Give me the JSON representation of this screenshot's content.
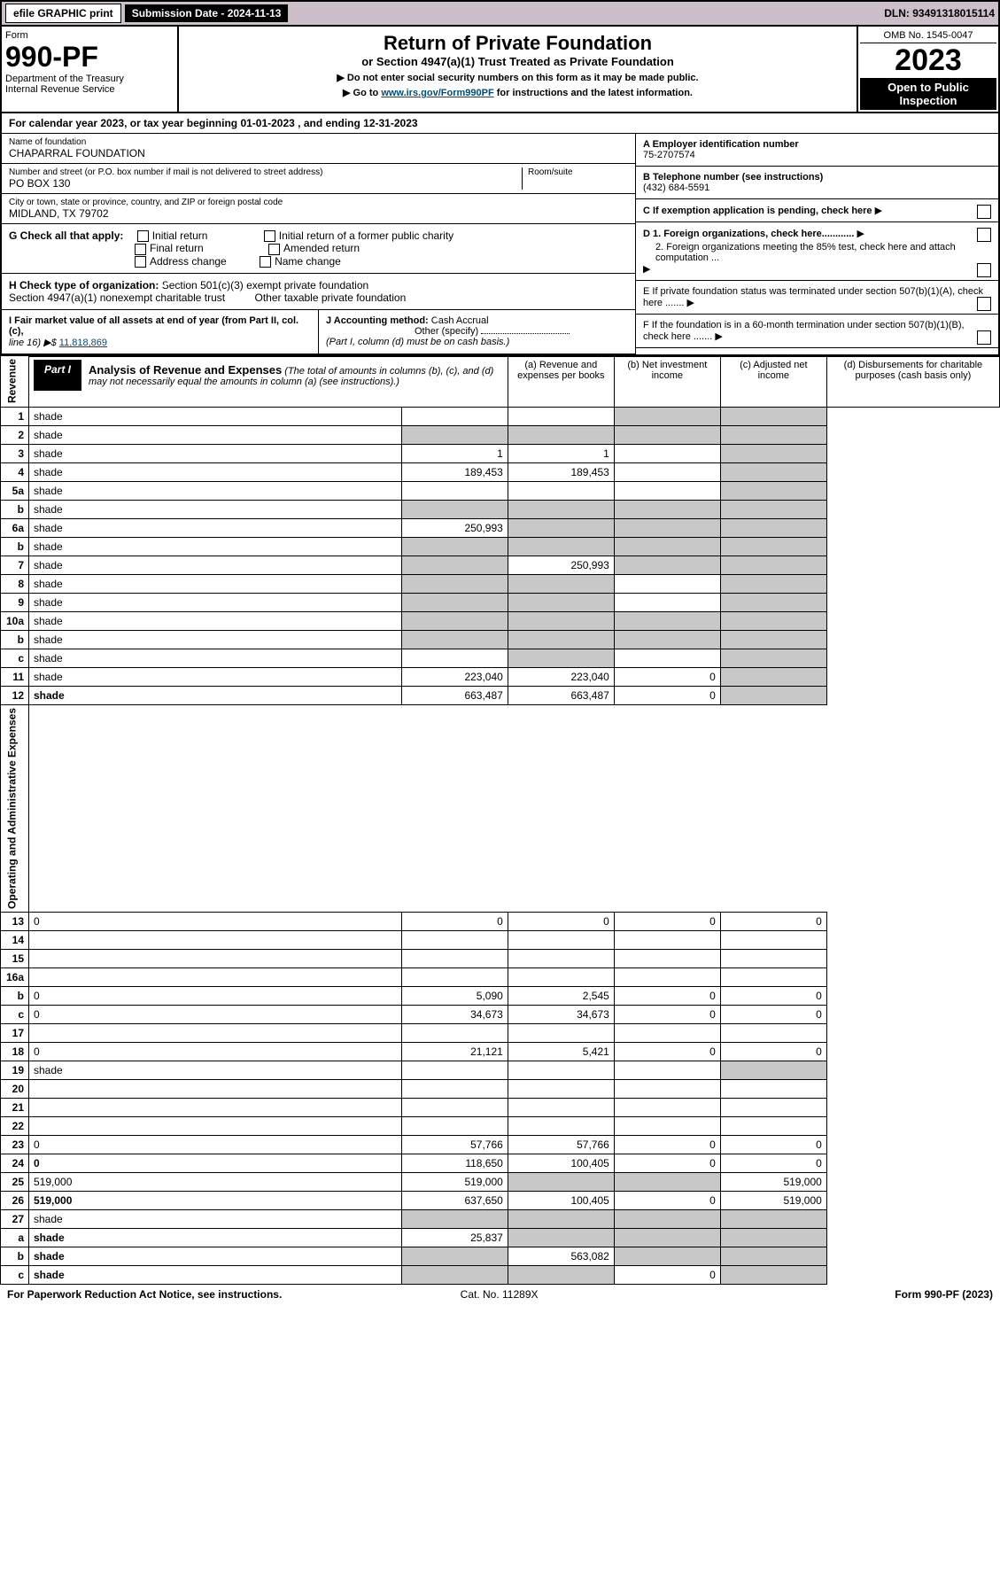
{
  "topbar": {
    "efile": "efile GRAPHIC print",
    "submission": "Submission Date - 2024-11-13",
    "dln": "DLN: 93491318015114"
  },
  "header": {
    "form_label": "Form",
    "form_number": "990-PF",
    "dept1": "Department of the Treasury",
    "dept2": "Internal Revenue Service",
    "title": "Return of Private Foundation",
    "subtitle": "or Section 4947(a)(1) Trust Treated as Private Foundation",
    "note1": "▶ Do not enter social security numbers on this form as it may be made public.",
    "note2_pre": "▶ Go to ",
    "note2_link": "www.irs.gov/Form990PF",
    "note2_post": " for instructions and the latest information.",
    "omb": "OMB No. 1545-0047",
    "year": "2023",
    "open": "Open to Public Inspection"
  },
  "calendar": "For calendar year 2023, or tax year beginning 01-01-2023                         , and ending 12-31-2023",
  "entity": {
    "name_lbl": "Name of foundation",
    "name": "CHAPARRAL FOUNDATION",
    "addr_lbl": "Number and street (or P.O. box number if mail is not delivered to street address)",
    "addr": "PO BOX 130",
    "room_lbl": "Room/suite",
    "city_lbl": "City or town, state or province, country, and ZIP or foreign postal code",
    "city": "MIDLAND, TX  79702",
    "ein_lbl": "A Employer identification number",
    "ein": "75-2707574",
    "phone_lbl": "B Telephone number (see instructions)",
    "phone": "(432) 684-5591",
    "c_lbl": "C If exemption application is pending, check here",
    "d1": "D 1. Foreign organizations, check here............",
    "d2": "2. Foreign organizations meeting the 85% test, check here and attach computation ...",
    "e": "E   If private foundation status was terminated under section 507(b)(1)(A), check here .......",
    "f": "F   If the foundation is in a 60-month termination under section 507(b)(1)(B), check here ......."
  },
  "sectionG": {
    "label": "G Check all that apply:",
    "opts": [
      "Initial return",
      "Final return",
      "Address change",
      "Initial return of a former public charity",
      "Amended return",
      "Name change"
    ]
  },
  "sectionH": {
    "label": "H Check type of organization:",
    "opt1": "Section 501(c)(3) exempt private foundation",
    "opt2": "Section 4947(a)(1) nonexempt charitable trust",
    "opt3": "Other taxable private foundation"
  },
  "fmv": {
    "label_i": "I Fair market value of all assets at end of year (from Part II, col. (c),",
    "line16": "line 16) ▶$ ",
    "value": "11,818,869",
    "label_j": "J Accounting method:",
    "cash": "Cash",
    "accrual": "Accrual",
    "other": "Other (specify)",
    "note": "(Part I, column (d) must be on cash basis.)"
  },
  "part1": {
    "tag": "Part I",
    "title": "Analysis of Revenue and Expenses",
    "desc": "(The total of amounts in columns (b), (c), and (d) may not necessarily equal the amounts in column (a) (see instructions).)",
    "col_a": "(a)    Revenue and expenses per books",
    "col_b": "(b)   Net investment income",
    "col_c": "(c)   Adjusted net income",
    "col_d": "(d)   Disbursements for charitable purposes (cash basis only)"
  },
  "revenue_label": "Revenue",
  "expense_label": "Operating and Administrative Expenses",
  "rows": [
    {
      "n": "1",
      "d": "shade",
      "a": "",
      "b": "",
      "c": "shade"
    },
    {
      "n": "2",
      "d": "shade",
      "a": "shade",
      "b": "shade",
      "c": "shade"
    },
    {
      "n": "3",
      "d": "shade",
      "a": "1",
      "b": "1",
      "c": ""
    },
    {
      "n": "4",
      "d": "shade",
      "a": "189,453",
      "b": "189,453",
      "c": ""
    },
    {
      "n": "5a",
      "d": "shade",
      "a": "",
      "b": "",
      "c": ""
    },
    {
      "n": "b",
      "d": "shade",
      "a": "shade",
      "b": "shade",
      "c": "shade"
    },
    {
      "n": "6a",
      "d": "shade",
      "a": "250,993",
      "b": "shade",
      "c": "shade"
    },
    {
      "n": "b",
      "d": "shade",
      "a": "shade",
      "b": "shade",
      "c": "shade"
    },
    {
      "n": "7",
      "d": "shade",
      "a": "shade",
      "b": "250,993",
      "c": "shade"
    },
    {
      "n": "8",
      "d": "shade",
      "a": "shade",
      "b": "shade",
      "c": ""
    },
    {
      "n": "9",
      "d": "shade",
      "a": "shade",
      "b": "shade",
      "c": ""
    },
    {
      "n": "10a",
      "d": "shade",
      "a": "shade",
      "b": "shade",
      "c": "shade"
    },
    {
      "n": "b",
      "d": "shade",
      "a": "shade",
      "b": "shade",
      "c": "shade"
    },
    {
      "n": "c",
      "d": "shade",
      "a": "",
      "b": "shade",
      "c": ""
    },
    {
      "n": "11",
      "d": "shade",
      "a": "223,040",
      "b": "223,040",
      "c": "0"
    },
    {
      "n": "12",
      "d": "shade",
      "a": "663,487",
      "b": "663,487",
      "c": "0",
      "bold": true
    }
  ],
  "exp_rows": [
    {
      "n": "13",
      "d": "0",
      "a": "0",
      "b": "0",
      "c": "0"
    },
    {
      "n": "14",
      "d": "",
      "a": "",
      "b": "",
      "c": ""
    },
    {
      "n": "15",
      "d": "",
      "a": "",
      "b": "",
      "c": ""
    },
    {
      "n": "16a",
      "d": "",
      "a": "",
      "b": "",
      "c": ""
    },
    {
      "n": "b",
      "d": "0",
      "a": "5,090",
      "b": "2,545",
      "c": "0"
    },
    {
      "n": "c",
      "d": "0",
      "a": "34,673",
      "b": "34,673",
      "c": "0"
    },
    {
      "n": "17",
      "d": "",
      "a": "",
      "b": "",
      "c": ""
    },
    {
      "n": "18",
      "d": "0",
      "a": "21,121",
      "b": "5,421",
      "c": "0"
    },
    {
      "n": "19",
      "d": "shade",
      "a": "",
      "b": "",
      "c": ""
    },
    {
      "n": "20",
      "d": "",
      "a": "",
      "b": "",
      "c": ""
    },
    {
      "n": "21",
      "d": "",
      "a": "",
      "b": "",
      "c": ""
    },
    {
      "n": "22",
      "d": "",
      "a": "",
      "b": "",
      "c": ""
    },
    {
      "n": "23",
      "d": "0",
      "a": "57,766",
      "b": "57,766",
      "c": "0"
    },
    {
      "n": "24",
      "d": "0",
      "a": "118,650",
      "b": "100,405",
      "c": "0",
      "bold": true
    },
    {
      "n": "25",
      "d": "519,000",
      "a": "519,000",
      "b": "shade",
      "c": "shade"
    },
    {
      "n": "26",
      "d": "519,000",
      "a": "637,650",
      "b": "100,405",
      "c": "0",
      "bold": true
    }
  ],
  "bottom_rows": [
    {
      "n": "27",
      "d": "shade",
      "a": "shade",
      "b": "shade",
      "c": "shade"
    },
    {
      "n": "a",
      "d": "shade",
      "a": "25,837",
      "b": "shade",
      "c": "shade",
      "bold": true
    },
    {
      "n": "b",
      "d": "shade",
      "a": "shade",
      "b": "563,082",
      "c": "shade",
      "bold": true
    },
    {
      "n": "c",
      "d": "shade",
      "a": "shade",
      "b": "shade",
      "c": "0",
      "bold": true
    }
  ],
  "footer": {
    "left": "For Paperwork Reduction Act Notice, see instructions.",
    "mid": "Cat. No. 11289X",
    "right": "Form 990-PF (2023)"
  }
}
